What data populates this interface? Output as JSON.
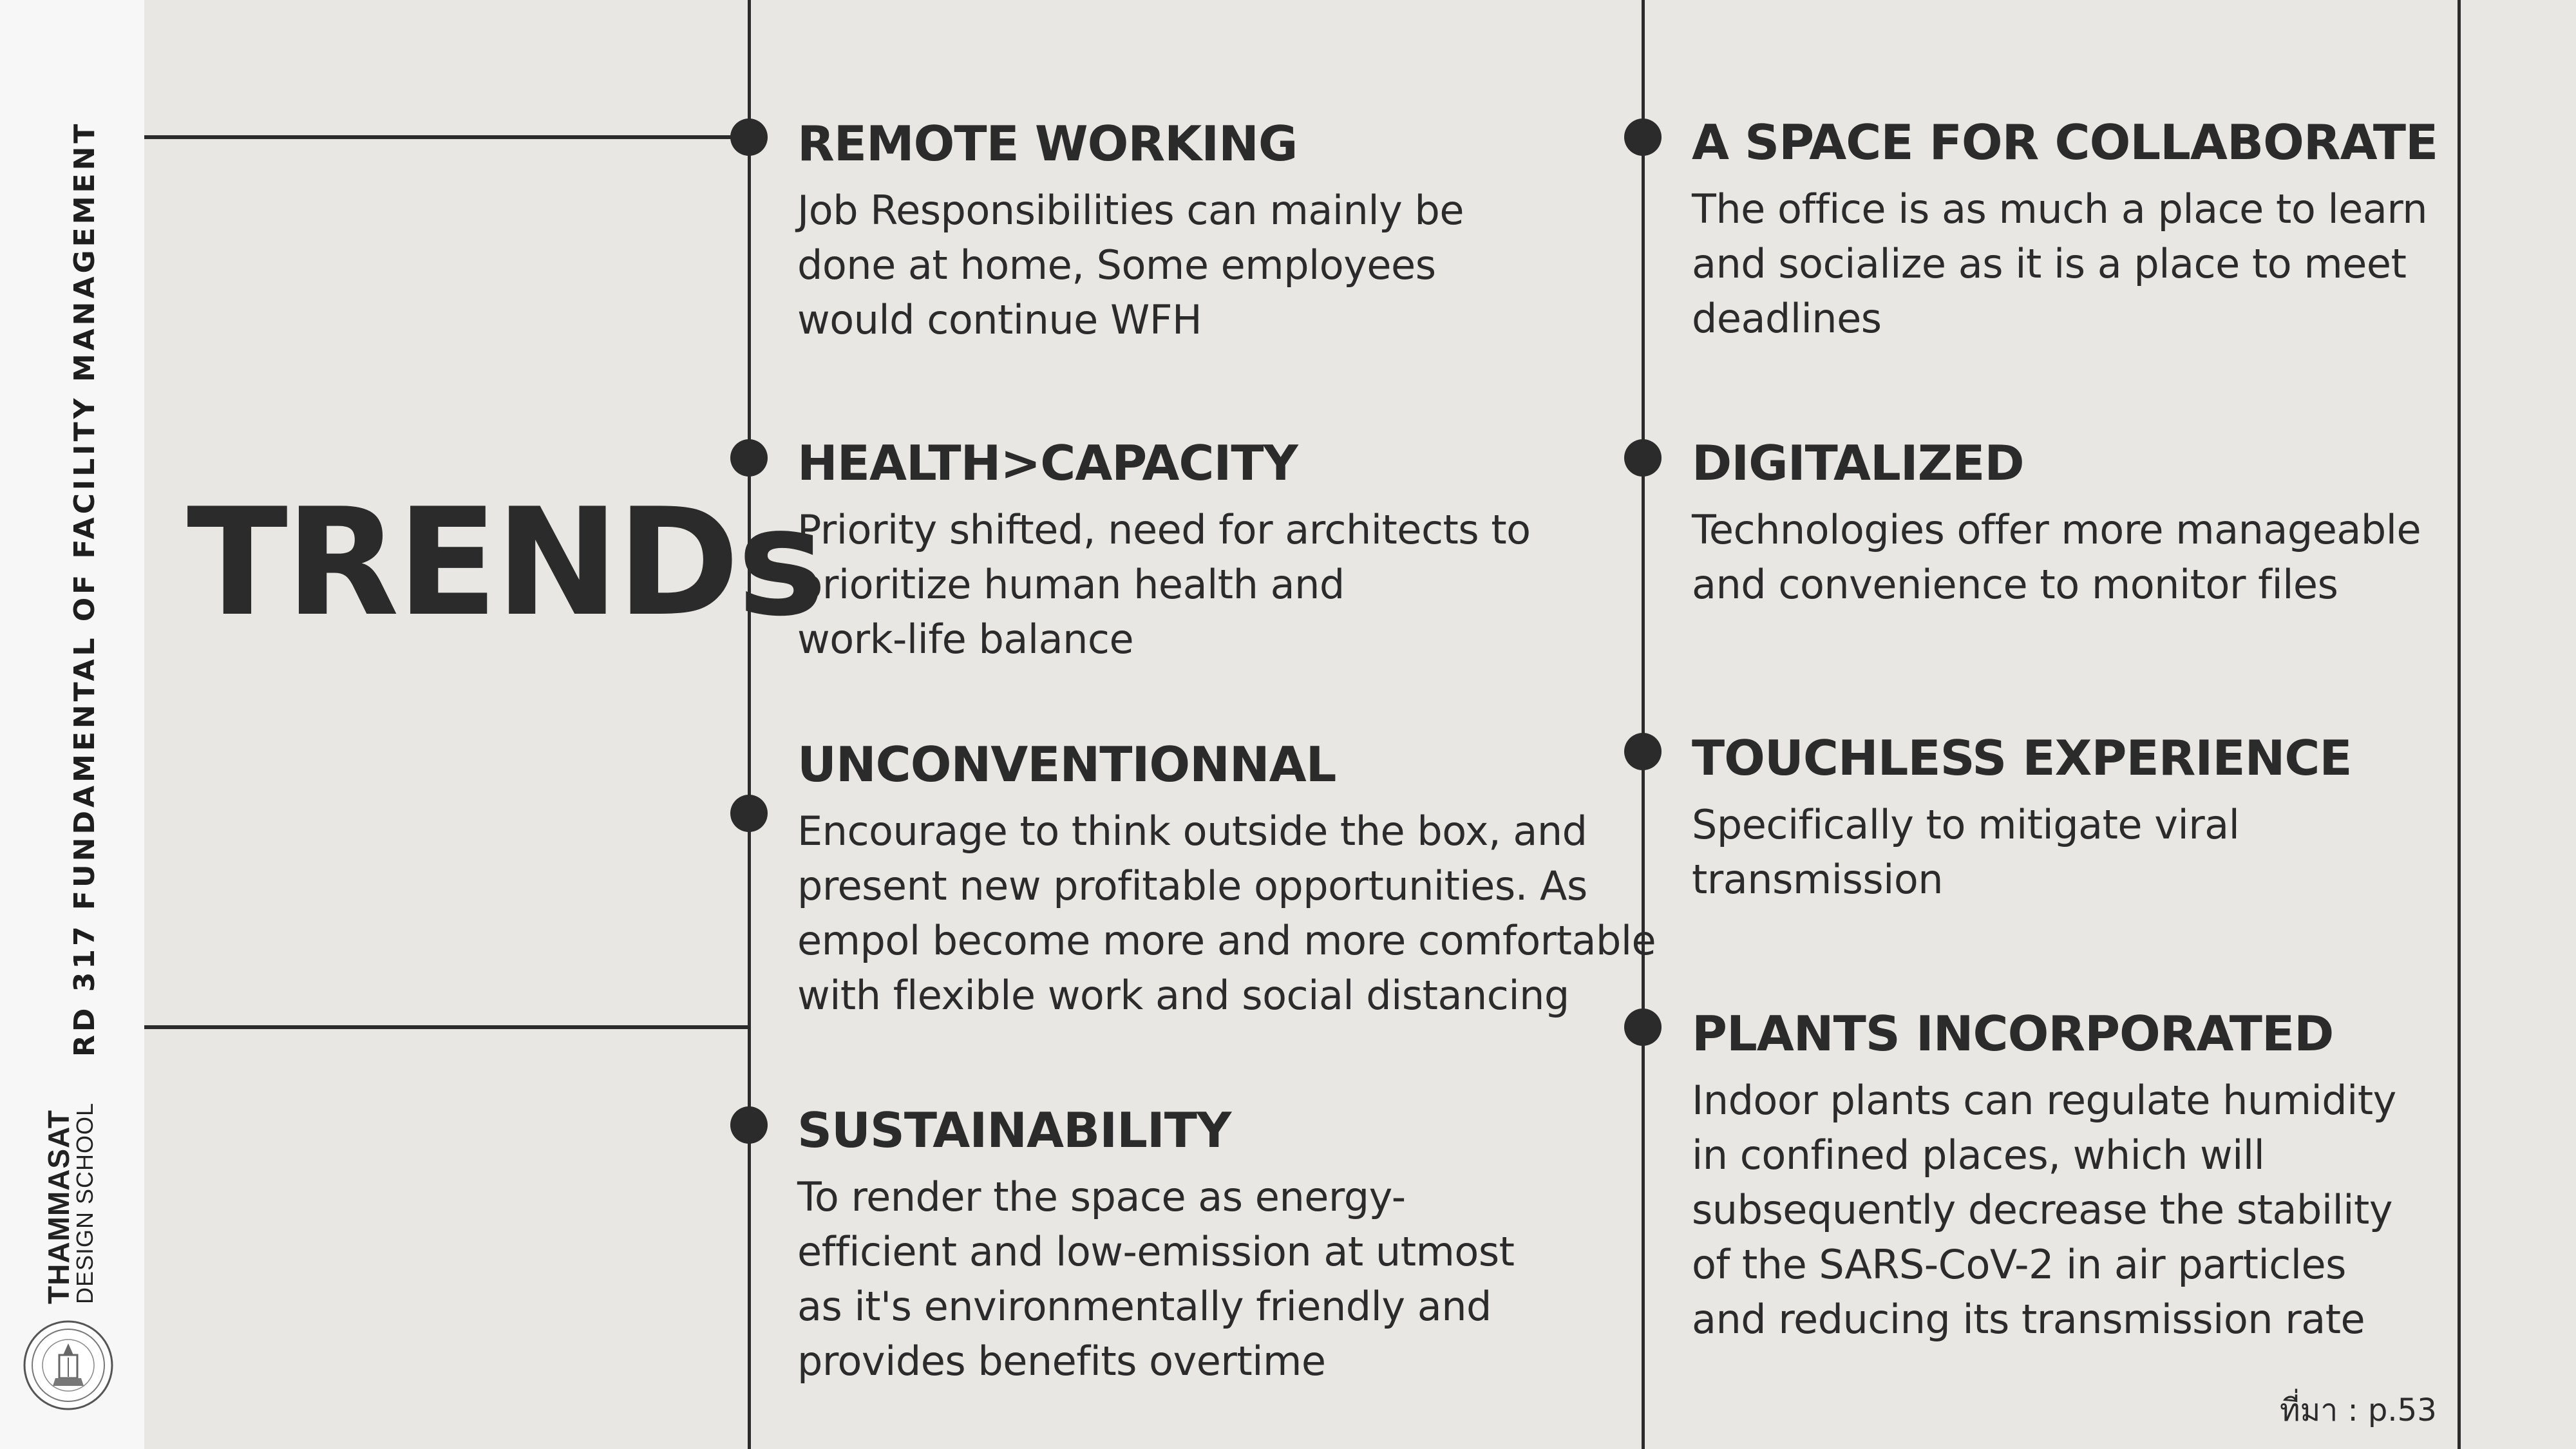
{
  "sidebar": {
    "course_title": "RD 317 FUNDAMENTAL OF FACILITY MANAGEMENT",
    "school_line1": "THAMMASAT",
    "school_line2": "DESIGN SCHOOL",
    "seal_icon": "university-seal-icon"
  },
  "title": "TRENDs",
  "left_column": [
    {
      "heading": "REMOTE WORKING",
      "body": "Job Responsibilities can mainly be\ndone at home, Some employees\nwould continue WFH"
    },
    {
      "heading": "HEALTH>CAPACITY",
      "body": "Priority shifted, need for architects to\nprioritize human health and\nwork-life balance"
    },
    {
      "heading": "UNCONVENTIONNAL",
      "body": "Encourage to think outside the box, and\npresent new profitable opportunities. As\nempol become more and more comfortable\nwith flexible work and social distancing"
    },
    {
      "heading": "SUSTAINABILITY",
      "body": "To render the space as energy-\nefficient and low-emission at utmost\nas it's environmentally friendly and\nprovides benefits overtime"
    }
  ],
  "right_column": [
    {
      "heading": "A SPACE FOR COLLABORATE",
      "body": "The office is as much a place to learn\nand socialize as it is a place to meet\ndeadlines"
    },
    {
      "heading": "DIGITALIZED",
      "body": "Technologies offer more manageable\nand convenience to monitor files"
    },
    {
      "heading": "TOUCHLESS EXPERIENCE",
      "body": "Specifically to mitigate viral\ntransmission"
    },
    {
      "heading": "PLANTS INCORPORATED",
      "body": "Indoor plants can regulate humidity\nin confined places, which will\nsubsequently decrease the stability\nof the SARS-CoV-2 in air particles\nand reducing its transmission rate"
    }
  ],
  "source": "ที่มา : p.53",
  "colors": {
    "background": "#e8e7e4",
    "sidebar": "#f7f7f7",
    "ink": "#2b2b2b"
  }
}
